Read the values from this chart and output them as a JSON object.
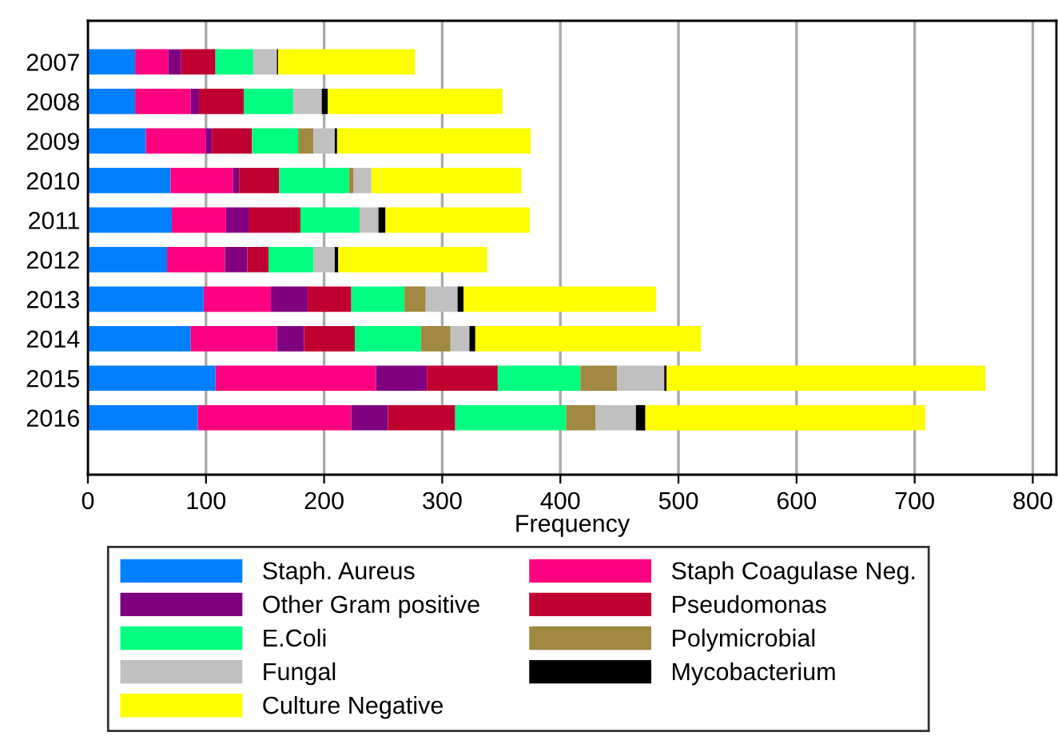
{
  "chart_data": {
    "type": "bar",
    "orientation": "horizontal",
    "stacked": true,
    "xlabel": "Frequency",
    "categories": [
      "2007",
      "2008",
      "2009",
      "2010",
      "2011",
      "2012",
      "2013",
      "2014",
      "2015",
      "2016"
    ],
    "series": [
      {
        "name": "Staph. Aureus",
        "color": "#0080ff",
        "values": [
          40,
          40,
          49,
          70,
          71,
          67,
          98,
          87,
          108,
          93
        ]
      },
      {
        "name": "Staph Coagulase Neg.",
        "color": "#ff0080",
        "values": [
          28,
          47,
          51,
          53,
          46,
          49,
          57,
          73,
          136,
          130
        ]
      },
      {
        "name": "Other Gram positive",
        "color": "#800080",
        "values": [
          11,
          7,
          5,
          5,
          19,
          19,
          31,
          23,
          43,
          31
        ]
      },
      {
        "name": "Pseudomonas",
        "color": "#c00030",
        "values": [
          29,
          38,
          34,
          34,
          44,
          18,
          37,
          43,
          60,
          57
        ]
      },
      {
        "name": "E.Coli",
        "color": "#00ff80",
        "values": [
          32,
          42,
          39,
          59,
          50,
          38,
          45,
          56,
          70,
          94
        ]
      },
      {
        "name": "Polymicrobial",
        "color": "#a08840",
        "values": [
          0,
          0,
          13,
          4,
          0,
          0,
          18,
          25,
          31,
          25
        ]
      },
      {
        "name": "Fungal",
        "color": "#c0c0c0",
        "values": [
          20,
          24,
          18,
          15,
          16,
          18,
          27,
          16,
          40,
          34
        ]
      },
      {
        "name": "Mycobacterium",
        "color": "#000000",
        "values": [
          1,
          5,
          2,
          0,
          6,
          3,
          5,
          5,
          2,
          8
        ]
      },
      {
        "name": "Culture Negative",
        "color": "#ffff00",
        "values": [
          116,
          148,
          164,
          127,
          122,
          126,
          163,
          191,
          270,
          237
        ]
      }
    ],
    "xlim": [
      0,
      820
    ],
    "xticks": [
      0,
      100,
      200,
      300,
      400,
      500,
      600,
      700,
      800
    ],
    "grid": "x",
    "legend": "bottom"
  }
}
